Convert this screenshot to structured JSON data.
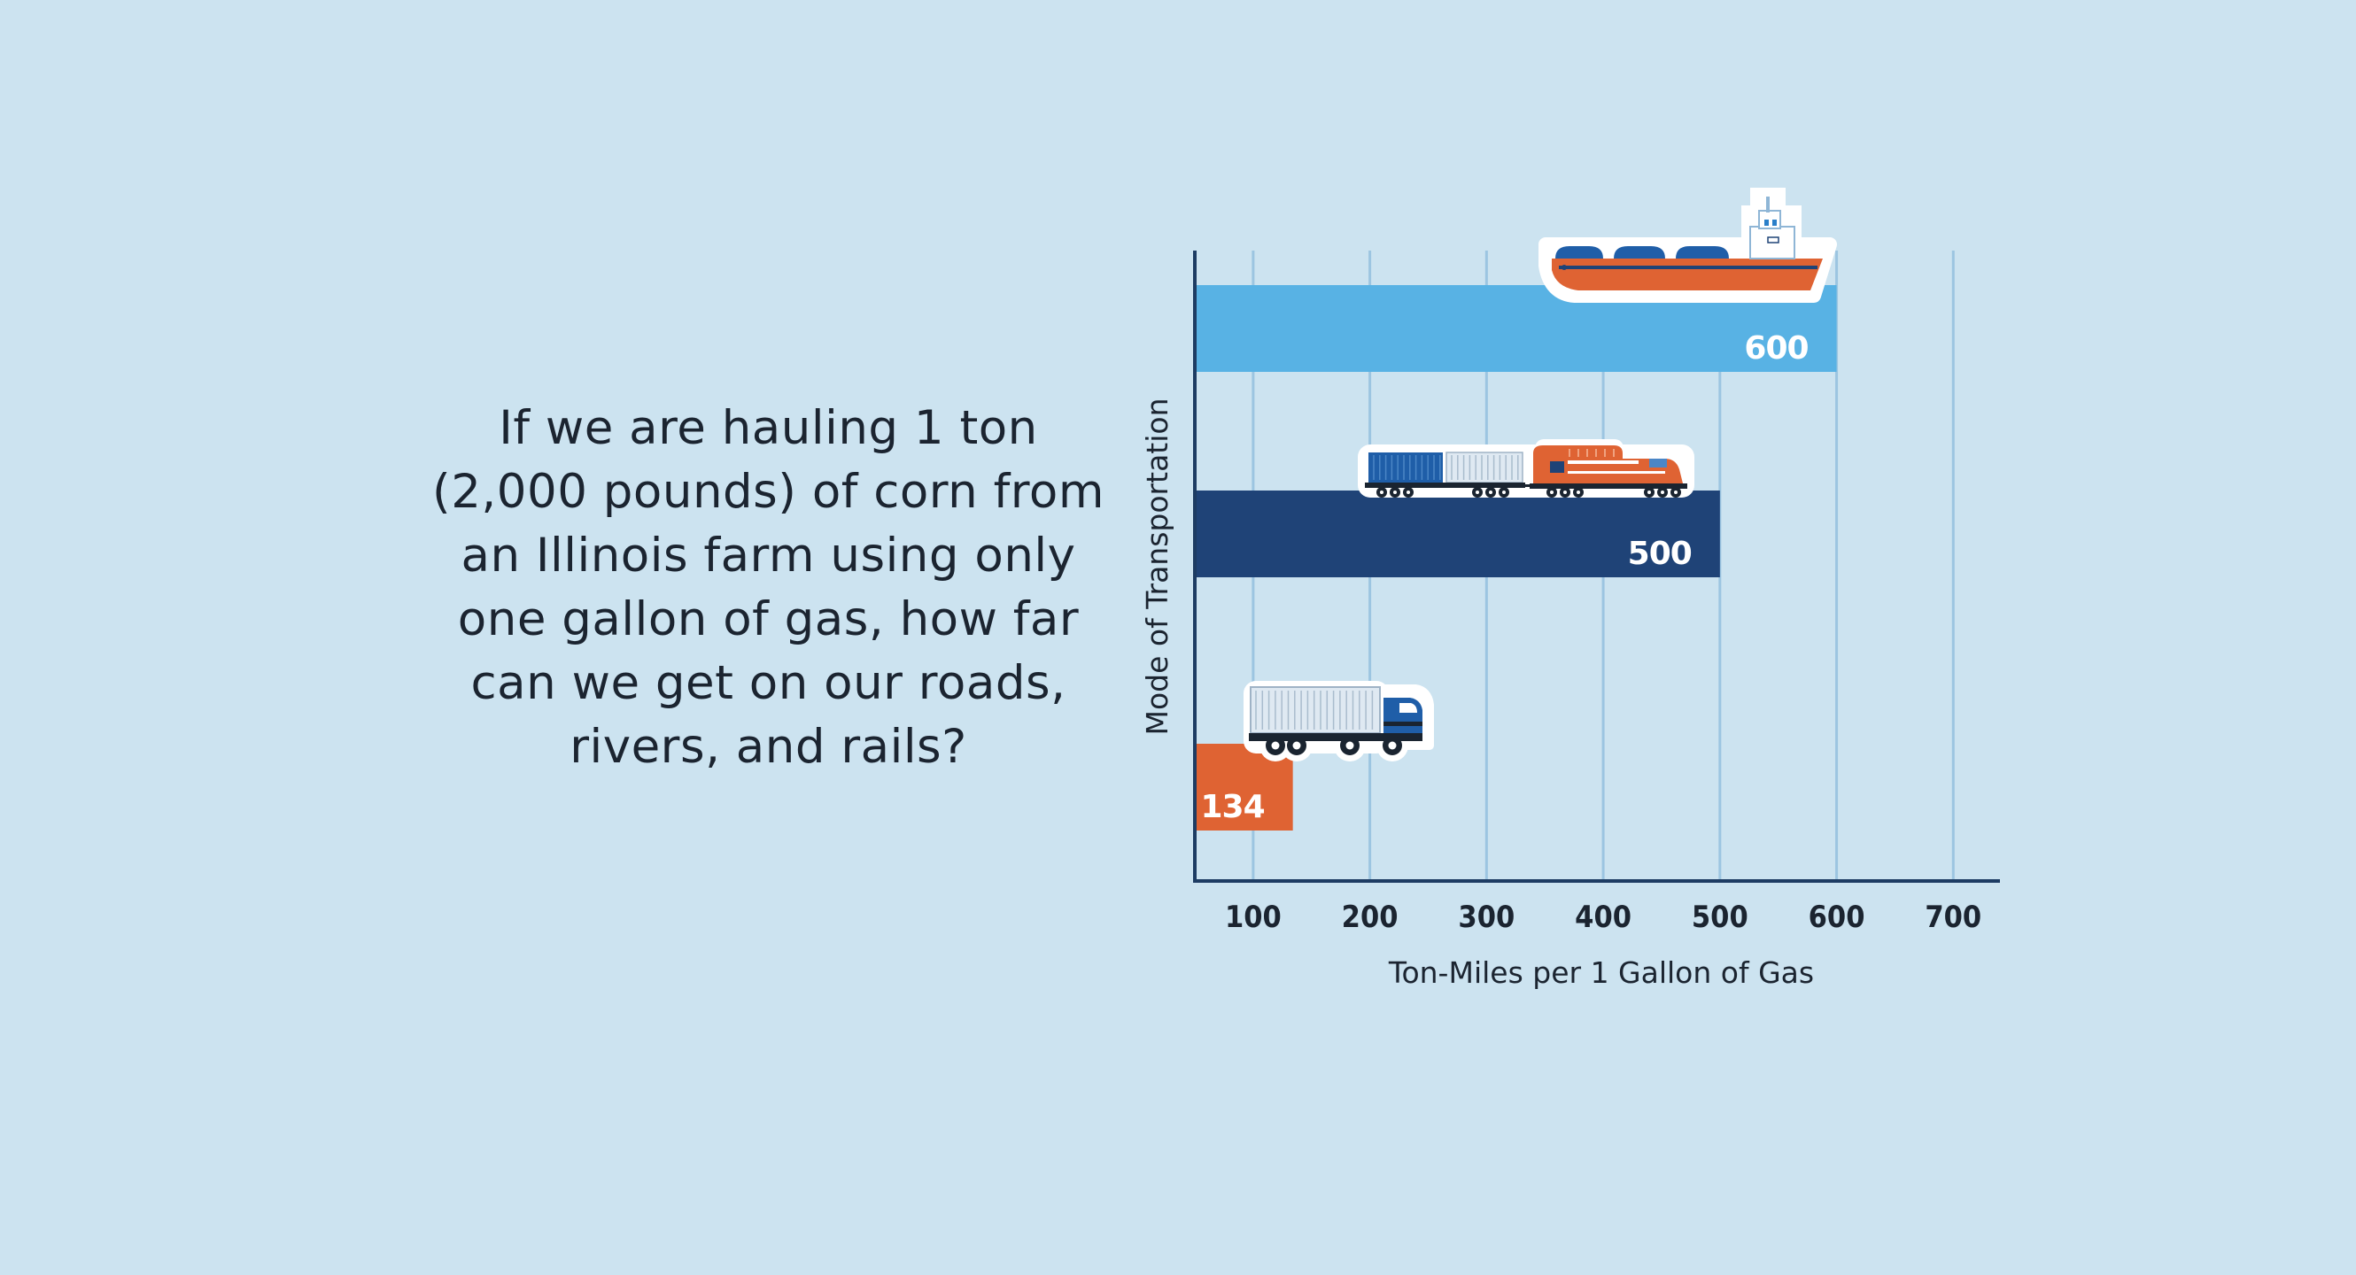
{
  "colors": {
    "background": "#cce3f0",
    "grid": "#9cc5e1",
    "axis": "#1d3c63",
    "barge": "#58b2e4",
    "rail": "#1f4377",
    "truck": "#df6333",
    "text": "#1b2430",
    "bar_label": "#ffffff"
  },
  "question": "If we are hauling 1 ton (2,000 pounds) of corn from an Illinois farm using only one gallon of gas, how far can we get on our roads, rivers, and rails?",
  "chart_data": {
    "type": "bar",
    "orientation": "horizontal",
    "xlabel": "Ton-Miles per 1 Gallon of Gas",
    "ylabel": "Mode of Transportation",
    "xlim": [
      50,
      740
    ],
    "xticks": [
      100,
      200,
      300,
      400,
      500,
      600,
      700
    ],
    "grid": true,
    "legend": "none",
    "bars": [
      {
        "value": 600,
        "label": "600",
        "color": "#58b2e4",
        "icon": "barge-icon"
      },
      {
        "value": 500,
        "label": "500",
        "color": "#1f4377",
        "icon": "train-icon"
      },
      {
        "value": 134,
        "label": "134",
        "color": "#df6333",
        "icon": "truck-icon"
      }
    ]
  }
}
